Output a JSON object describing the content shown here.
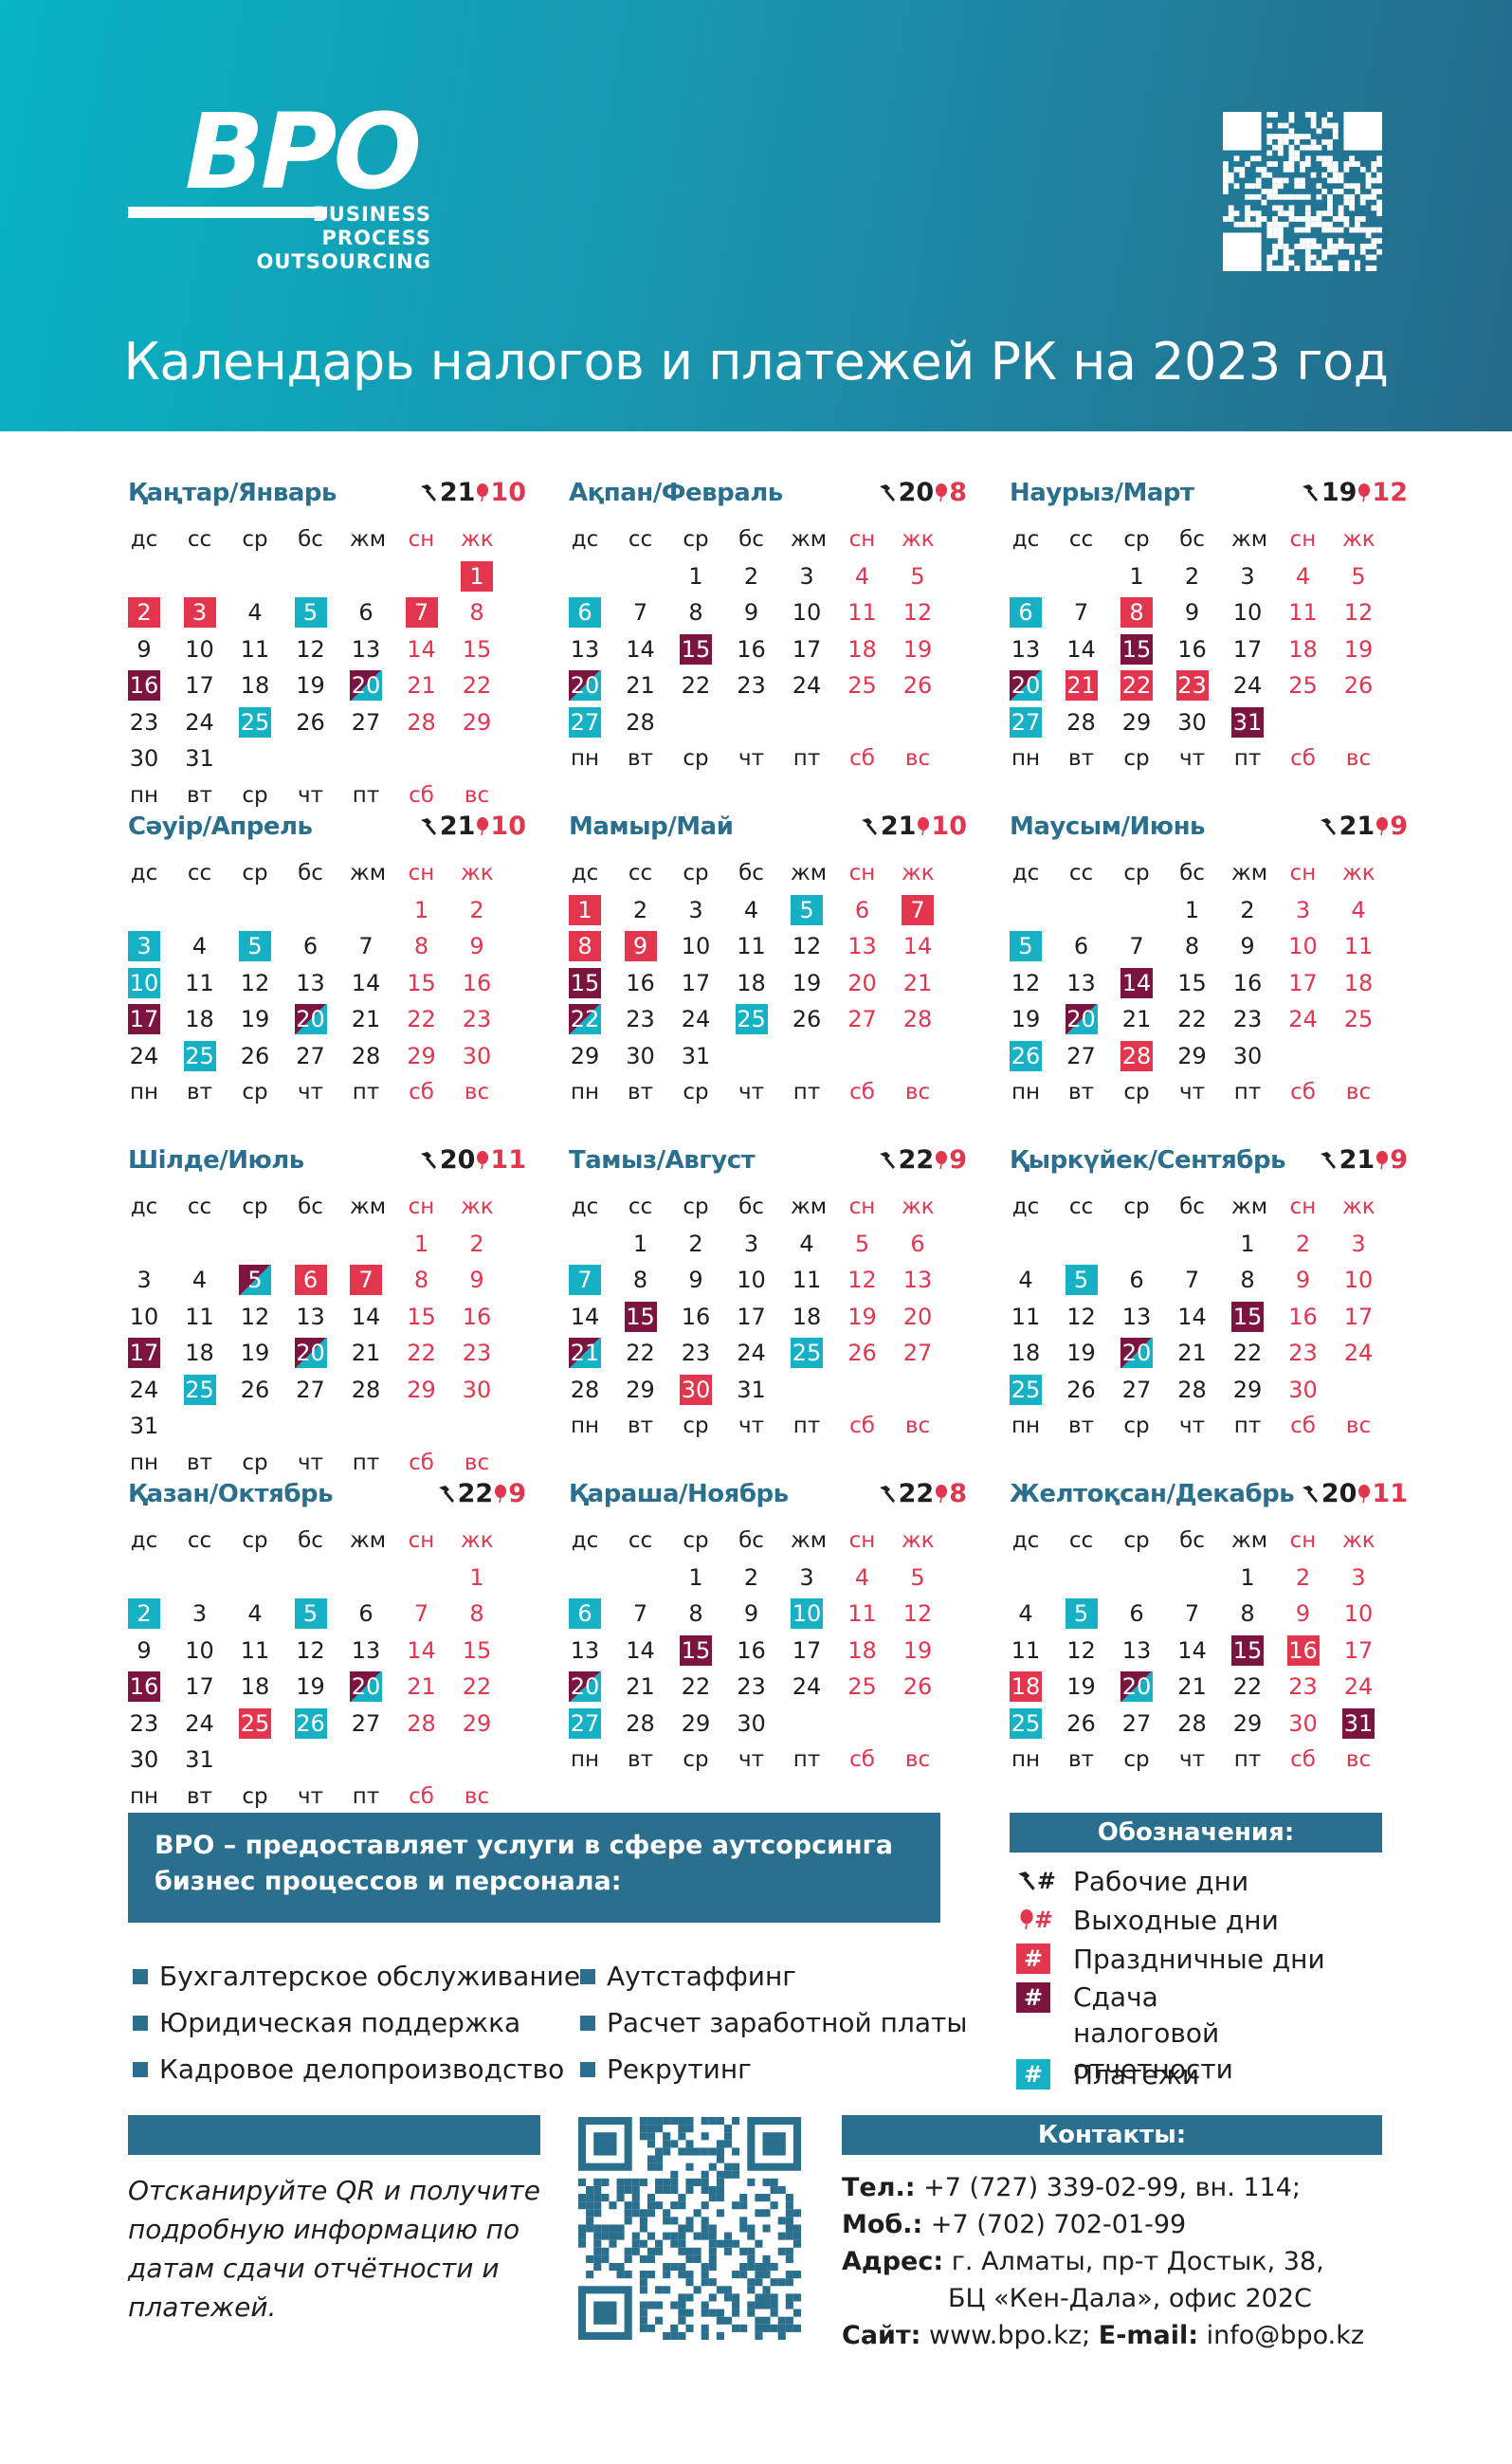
{
  "brand": {
    "logo": "BPO",
    "tagline": [
      "BUSINESS",
      "PROCESS",
      "OUTSOURCING"
    ]
  },
  "title": "Календарь налогов и платежей РК на 2023 год",
  "colors": {
    "header_start": "#07b3c4",
    "header_end": "#25698a",
    "brand_dark": "#2a6f8d",
    "holiday": "#e2364f",
    "tax_report": "#7c1440",
    "payment": "#16b1c4"
  },
  "weekday_top": [
    "дс",
    "сс",
    "ср",
    "бс",
    "жм",
    "сн",
    "жк"
  ],
  "weekday_bottom": [
    "пн",
    "вт",
    "ср",
    "чт",
    "пт",
    "сб",
    "вс"
  ],
  "months": [
    {
      "name": "Қаңтар/Январь",
      "work": "21",
      "off": "10",
      "first_weekday": 6,
      "days": 31,
      "holiday": [
        1,
        2,
        3,
        7
      ],
      "tax": [
        16
      ],
      "payment": [
        5,
        25
      ],
      "mixed": [
        20
      ]
    },
    {
      "name": "Ақпан/Февраль",
      "work": "20",
      "off": "8",
      "first_weekday": 2,
      "days": 28,
      "holiday": [],
      "tax": [
        15
      ],
      "payment": [
        6,
        27
      ],
      "mixed": [
        20
      ]
    },
    {
      "name": "Наурыз/Март",
      "work": "19",
      "off": "12",
      "first_weekday": 2,
      "days": 31,
      "holiday": [
        8,
        21,
        22,
        23
      ],
      "tax": [
        15,
        31
      ],
      "payment": [
        6,
        27
      ],
      "mixed": [
        20
      ]
    },
    {
      "name": "Сәуір/Апрель",
      "work": "21",
      "off": "10",
      "first_weekday": 5,
      "days": 30,
      "holiday": [],
      "tax": [
        17
      ],
      "payment": [
        3,
        5,
        10,
        25
      ],
      "mixed": [
        20
      ]
    },
    {
      "name": "Мамыр/Май",
      "work": "21",
      "off": "10",
      "first_weekday": 0,
      "days": 31,
      "holiday": [
        1,
        7,
        8,
        9
      ],
      "tax": [
        15
      ],
      "payment": [
        5,
        25
      ],
      "mixed": [
        22
      ]
    },
    {
      "name": "Маусым/Июнь",
      "work": "21",
      "off": "9",
      "first_weekday": 3,
      "days": 30,
      "holiday": [
        28
      ],
      "tax": [
        14
      ],
      "payment": [
        5,
        26
      ],
      "mixed": [
        20
      ]
    },
    {
      "name": "Шілде/Июль",
      "work": "20",
      "off": "11",
      "first_weekday": 5,
      "days": 31,
      "holiday": [
        6,
        7
      ],
      "tax": [
        17
      ],
      "payment": [
        25
      ],
      "mixed": [
        5,
        20
      ]
    },
    {
      "name": "Тамыз/Август",
      "work": "22",
      "off": "9",
      "first_weekday": 1,
      "days": 31,
      "holiday": [
        30
      ],
      "tax": [
        15
      ],
      "payment": [
        7,
        25
      ],
      "mixed": [
        21
      ]
    },
    {
      "name": "Қыркүйек/Сентябрь",
      "work": "21",
      "off": "9",
      "first_weekday": 4,
      "days": 30,
      "holiday": [],
      "tax": [
        15
      ],
      "payment": [
        5,
        25
      ],
      "mixed": [
        20
      ]
    },
    {
      "name": "Қазан/Октябрь",
      "work": "22",
      "off": "9",
      "first_weekday": 6,
      "days": 31,
      "holiday": [
        25
      ],
      "tax": [
        16
      ],
      "payment": [
        2,
        5,
        26
      ],
      "mixed": [
        20
      ]
    },
    {
      "name": "Қараша/Ноябрь",
      "work": "22",
      "off": "8",
      "first_weekday": 2,
      "days": 30,
      "holiday": [],
      "tax": [
        15
      ],
      "payment": [
        6,
        10,
        27
      ],
      "mixed": [
        20
      ]
    },
    {
      "name": "Желтоқсан/Декабрь",
      "work": "20",
      "off": "11",
      "first_weekday": 4,
      "days": 31,
      "holiday": [
        16,
        18
      ],
      "tax": [
        15,
        31
      ],
      "payment": [
        5,
        25
      ],
      "mixed": [
        20
      ]
    }
  ],
  "services": {
    "intro": "BPO – предоставляет услуги в сфере аутсорсинга бизнес процессов и персонала:",
    "items": [
      "Бухгалтерское обслуживание",
      "Юридическая поддержка",
      "Кадровое делопроизводство",
      "Аутстаффинг",
      "Расчет заработной платы",
      "Рекрутинг"
    ]
  },
  "legend": {
    "title": "Обозначения:",
    "symbol": "#",
    "items": [
      "Рабочие дни",
      "Выходные дни",
      "Праздничные дни",
      "Сдача налоговой отчетности",
      "Платежи"
    ]
  },
  "qr_note": "Отсканируйте QR и получите подробную информацию по датам сдачи отчётности и платежей.",
  "contacts": {
    "title": "Контакты:",
    "phone_label": "Тел.:",
    "phone": "+7 (727) 339-02-99, вн. 114;",
    "mobile_label": "Моб.:",
    "mobile": "+7 (702) 702-01-99",
    "address_label": "Адрес:",
    "address_1": "г. Алматы, пр-т Достык, 38,",
    "address_2": "БЦ «Кен-Дала», офис 202С",
    "site_label": "Сайт:",
    "site": "www.bpo.kz;",
    "email_label": "E-mail:",
    "email": "info@bpo.kz"
  }
}
